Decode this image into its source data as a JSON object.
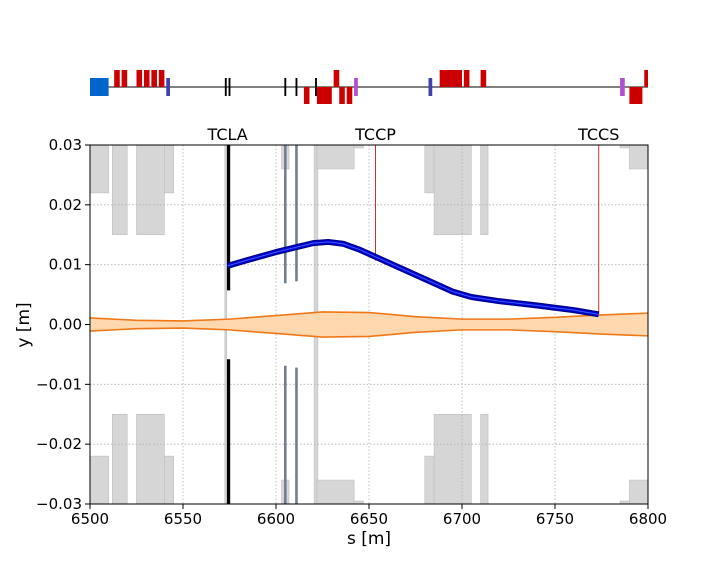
{
  "chart_data": {
    "type": "line",
    "xlabel": "s [m]",
    "ylabel": "y [m]",
    "xlim": [
      6500,
      6800
    ],
    "ylim": [
      -0.03,
      0.03
    ],
    "xticks": [
      "6500",
      "6550",
      "6600",
      "6650",
      "6700",
      "6750",
      "6800"
    ],
    "yticks": [
      "−0.03",
      "−0.02",
      "−0.01",
      "0.00",
      "0.01",
      "0.02",
      "0.03"
    ],
    "xtick_values": [
      6500,
      6550,
      6600,
      6650,
      6700,
      6750,
      6800
    ],
    "ytick_values": [
      -0.03,
      -0.02,
      -0.01,
      0.0,
      0.01,
      0.02,
      0.03
    ],
    "grid": true,
    "collimator_labels": [
      {
        "text": "TCLA",
        "s": 6574
      },
      {
        "text": "TCCP",
        "s": 6653.5
      },
      {
        "text": "TCCS",
        "s": 6773.5
      }
    ],
    "channeled_beam": {
      "s": [
        6574,
        6585,
        6600,
        6612,
        6620,
        6628,
        6636,
        6645,
        6655,
        6665,
        6675,
        6685,
        6695,
        6705,
        6720,
        6740,
        6760,
        6773.5
      ],
      "y": [
        0.0098,
        0.0108,
        0.0121,
        0.013,
        0.0136,
        0.0138,
        0.0135,
        0.0125,
        0.0111,
        0.0097,
        0.0083,
        0.0069,
        0.0055,
        0.0046,
        0.0039,
        0.0032,
        0.0024,
        0.0017
      ]
    },
    "beam_envelope": {
      "s": [
        6500,
        6525,
        6550,
        6575,
        6600,
        6625,
        6650,
        6675,
        6700,
        6725,
        6750,
        6775,
        6800
      ],
      "upper": [
        0.0011,
        0.0007,
        0.0006,
        0.0009,
        0.0015,
        0.0021,
        0.002,
        0.0013,
        0.0009,
        0.0009,
        0.0012,
        0.0016,
        0.0019
      ],
      "lower": [
        -0.0011,
        -0.0007,
        -0.0006,
        -0.0009,
        -0.0015,
        -0.0021,
        -0.002,
        -0.0013,
        -0.0009,
        -0.0009,
        -0.0012,
        -0.0016,
        -0.0019
      ]
    },
    "collimator_jaws": [
      {
        "s": 6574.5,
        "upper": 0.0057,
        "lower": -0.0058,
        "color": "#000000"
      },
      {
        "s": 6605,
        "upper": 0.0069,
        "lower": -0.0069,
        "color": "#708090"
      },
      {
        "s": 6611,
        "upper": 0.0072,
        "lower": -0.0072,
        "color": "#708090"
      }
    ],
    "thin_markers": [
      {
        "s": 6653.5,
        "y_from": 0.0107,
        "y_to": 0.03,
        "color": "#c0392b"
      },
      {
        "s": 6773.5,
        "y_from": 0.0017,
        "y_to": 0.03,
        "color": "#c0392b"
      }
    ],
    "aperture_regions": [
      {
        "s0": 6500,
        "s1": 6510,
        "aperture": 0.022
      },
      {
        "s0": 6512,
        "s1": 6520,
        "aperture": 0.015
      },
      {
        "s0": 6525,
        "s1": 6540,
        "aperture": 0.015
      },
      {
        "s0": 6540,
        "s1": 6545,
        "aperture": 0.022
      },
      {
        "s0": 6572.5,
        "s1": 6573.5,
        "aperture": 0.0
      },
      {
        "s0": 6603,
        "s1": 6607,
        "aperture": 0.026
      },
      {
        "s0": 6620.5,
        "s1": 6622.5,
        "aperture": 0.0
      },
      {
        "s0": 6622,
        "s1": 6642,
        "aperture": 0.026
      },
      {
        "s0": 6642,
        "s1": 6647,
        "aperture": 0.0295
      },
      {
        "s0": 6680,
        "s1": 6685,
        "aperture": 0.022
      },
      {
        "s0": 6685,
        "s1": 6705,
        "aperture": 0.015
      },
      {
        "s0": 6710,
        "s1": 6714,
        "aperture": 0.015
      },
      {
        "s0": 6785,
        "s1": 6790,
        "aperture": 0.0295
      },
      {
        "s0": 6790,
        "s1": 6800,
        "aperture": 0.026
      }
    ],
    "lattice_elements": [
      {
        "s0": 6500,
        "s1": 6510,
        "side": "center",
        "color": "#0066cc"
      },
      {
        "s0": 6513,
        "s1": 6516,
        "side": "up",
        "color": "#cc0000"
      },
      {
        "s0": 6517,
        "s1": 6520,
        "side": "up",
        "color": "#cc0000"
      },
      {
        "s0": 6525,
        "s1": 6528,
        "side": "up",
        "color": "#cc0000"
      },
      {
        "s0": 6529,
        "s1": 6532,
        "side": "up",
        "color": "#cc0000"
      },
      {
        "s0": 6533,
        "s1": 6536,
        "side": "up",
        "color": "#cc0000"
      },
      {
        "s0": 6537,
        "s1": 6540,
        "side": "up",
        "color": "#cc0000"
      },
      {
        "s0": 6541,
        "s1": 6543,
        "side": "center",
        "color": "#4040b0"
      },
      {
        "s0": 6572.5,
        "s1": 6573.5,
        "side": "center",
        "color": "#000000"
      },
      {
        "s0": 6574.5,
        "s1": 6575.5,
        "side": "center",
        "color": "#000000"
      },
      {
        "s0": 6604.5,
        "s1": 6605.5,
        "side": "center",
        "color": "#000000"
      },
      {
        "s0": 6610.5,
        "s1": 6611.5,
        "side": "center",
        "color": "#000000"
      },
      {
        "s0": 6615,
        "s1": 6618,
        "side": "down",
        "color": "#cc0000"
      },
      {
        "s0": 6621,
        "s1": 6622,
        "side": "center",
        "color": "#000000"
      },
      {
        "s0": 6622,
        "s1": 6630,
        "side": "down",
        "color": "#cc0000"
      },
      {
        "s0": 6631,
        "s1": 6634,
        "side": "up",
        "color": "#cc0000"
      },
      {
        "s0": 6634,
        "s1": 6637,
        "side": "down",
        "color": "#cc0000"
      },
      {
        "s0": 6638,
        "s1": 6641,
        "side": "down",
        "color": "#cc0000"
      },
      {
        "s0": 6642,
        "s1": 6644,
        "side": "center",
        "color": "#b050d0"
      },
      {
        "s0": 6682,
        "s1": 6684,
        "side": "center",
        "color": "#4040b0"
      },
      {
        "s0": 6688,
        "s1": 6700,
        "side": "up",
        "color": "#cc0000"
      },
      {
        "s0": 6701,
        "s1": 6704,
        "side": "up",
        "color": "#cc0000"
      },
      {
        "s0": 6710,
        "s1": 6713,
        "side": "up",
        "color": "#cc0000"
      },
      {
        "s0": 6785,
        "s1": 6787.5,
        "side": "center",
        "color": "#b050d0"
      },
      {
        "s0": 6790,
        "s1": 6797,
        "side": "down",
        "color": "#cc0000"
      },
      {
        "s0": 6798,
        "s1": 6800,
        "side": "up",
        "color": "#cc0000"
      }
    ],
    "colors": {
      "beam_line": "#0000cc",
      "beam_edge": "#000080",
      "envelope_line": "#f07818",
      "envelope_fill": "#ffd8b0",
      "aperture": "#d6d6d6",
      "grid": "#b0b0b0"
    }
  }
}
